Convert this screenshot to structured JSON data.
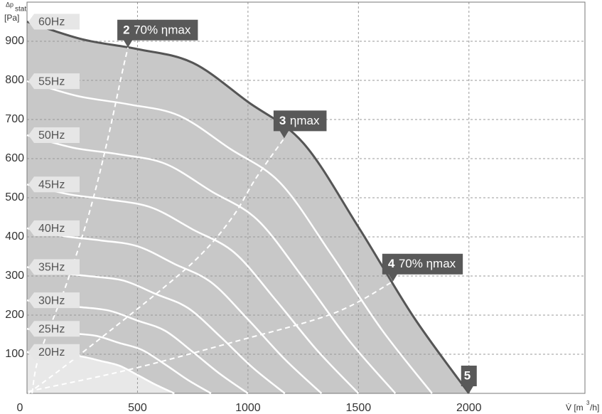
{
  "chart_data": {
    "type": "line",
    "ylabel": "Δp",
    "ylabel_sub": "stat",
    "ylabel_unit": "[Pa]",
    "xlabel_main": "V̇ [m",
    "xlabel_sup": "3",
    "xlabel_end": "/h]",
    "xlim": [
      0,
      2525
    ],
    "ylim": [
      0,
      1000
    ],
    "xticks": [
      0,
      500,
      1000,
      1500,
      2000
    ],
    "yticks": [
      100,
      200,
      300,
      400,
      500,
      600,
      700,
      800,
      900
    ],
    "grid": true,
    "series": [
      {
        "name": "60Hz",
        "color": "#555555",
        "x": [
          0,
          250,
          500,
          750,
          1000,
          1250,
          1500,
          1750,
          2000
        ],
        "values": [
          950,
          905,
          880,
          845,
          745,
          640,
          425,
          195,
          0
        ]
      },
      {
        "name": "55Hz",
        "color": "#ffffff",
        "x": [
          0,
          229,
          458,
          688,
          917,
          1146,
          1375,
          1604,
          1833
        ],
        "values": [
          798,
          760,
          739,
          710,
          626,
          538,
          357,
          164,
          0
        ]
      },
      {
        "name": "50Hz",
        "color": "#ffffff",
        "x": [
          0,
          208,
          417,
          625,
          833,
          1042,
          1250,
          1458,
          1667
        ],
        "values": [
          660,
          628,
          611,
          587,
          517,
          444,
          295,
          135,
          0
        ]
      },
      {
        "name": "45Hz",
        "color": "#ffffff",
        "x": [
          0,
          188,
          375,
          563,
          750,
          938,
          1125,
          1313,
          1500
        ],
        "values": [
          534,
          509,
          495,
          475,
          419,
          360,
          239,
          110,
          0
        ]
      },
      {
        "name": "40Hz",
        "color": "#ffffff",
        "x": [
          0,
          167,
          333,
          500,
          667,
          833,
          1000,
          1167,
          1333
        ],
        "values": [
          422,
          402,
          391,
          376,
          331,
          284,
          189,
          87,
          0
        ]
      },
      {
        "name": "35Hz",
        "color": "#ffffff",
        "x": [
          0,
          146,
          292,
          438,
          583,
          729,
          875,
          1021,
          1167
        ],
        "values": [
          323,
          308,
          299,
          288,
          254,
          218,
          145,
          66,
          0
        ]
      },
      {
        "name": "30Hz",
        "color": "#ffffff",
        "x": [
          0,
          125,
          250,
          375,
          500,
          625,
          750,
          875,
          1000
        ],
        "values": [
          238,
          226,
          220,
          211,
          186,
          160,
          106,
          49,
          0
        ]
      },
      {
        "name": "25Hz",
        "color": "#ffffff",
        "x": [
          0,
          104,
          208,
          313,
          417,
          521,
          625,
          729,
          833
        ],
        "values": [
          165,
          157,
          153,
          147,
          129,
          111,
          74,
          34,
          0
        ]
      },
      {
        "name": "20Hz",
        "color": "#ffffff",
        "x": [
          0,
          83,
          167,
          250,
          333,
          417,
          500,
          583,
          667
        ],
        "values": [
          106,
          101,
          98,
          94,
          83,
          71,
          47,
          22,
          0
        ]
      }
    ],
    "system_curves": [
      {
        "x": [
          23,
          55,
          177,
          280,
          361,
          431,
          457
        ],
        "values": [
          0,
          96,
          277,
          458,
          639,
          821,
          884
        ]
      },
      {
        "x": [
          6,
          232,
          633,
          810,
          939,
          1035,
          1164
        ],
        "values": [
          0,
          96,
          277,
          368,
          458,
          549,
          652
        ]
      },
      {
        "x": [
          6,
          457,
          939,
          1389,
          1656
        ],
        "values": [
          5,
          60,
          132,
          205,
          286
        ]
      }
    ],
    "markers": [
      {
        "number": "2",
        "label": "70% ηmax",
        "x": 457,
        "y": 884
      },
      {
        "number": "3",
        "label": "ηmax",
        "x": 1164,
        "y": 652
      },
      {
        "number": "4",
        "label": "70% ηmax",
        "x": 1656,
        "y": 286
      },
      {
        "number": "5",
        "x": 2000,
        "y": 0
      }
    ]
  }
}
